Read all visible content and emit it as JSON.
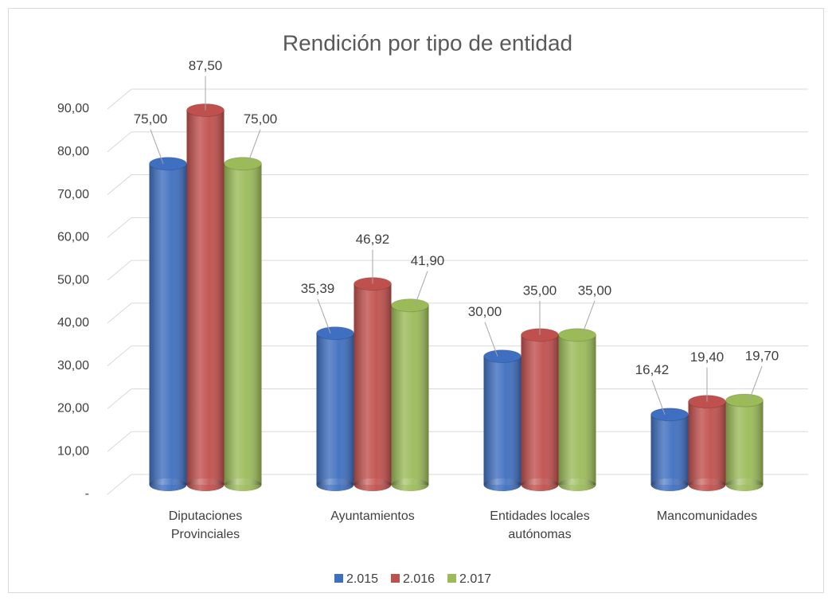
{
  "chart_data": {
    "type": "bar",
    "title": "Rendición por tipo de entidad",
    "categories": [
      "Diputaciones Provinciales",
      "Ayuntamientos",
      "Entidades locales autónomas",
      "Mancomunidades"
    ],
    "series": [
      {
        "name": "2.015",
        "color": "#3f6fc0",
        "values": [
          75,
          35.39,
          30,
          16.42
        ],
        "value_labels": [
          "75,00",
          "35,39",
          "30,00",
          "16,42"
        ]
      },
      {
        "name": "2.016",
        "color": "#c0504d",
        "values": [
          87.5,
          46.92,
          35,
          19.4
        ],
        "value_labels": [
          "87,50",
          "46,92",
          "35,00",
          "19,40"
        ]
      },
      {
        "name": "2.017",
        "color": "#9bbb59",
        "values": [
          75,
          41.9,
          35,
          19.7
        ],
        "value_labels": [
          "75,00",
          "41,90",
          "35,00",
          "19,70"
        ]
      }
    ],
    "ylim": [
      0,
      90
    ],
    "yticks": [
      {
        "value": 0,
        "label": "-"
      },
      {
        "value": 10,
        "label": "10,00"
      },
      {
        "value": 20,
        "label": "20,00"
      },
      {
        "value": 30,
        "label": "30,00"
      },
      {
        "value": 40,
        "label": "40,00"
      },
      {
        "value": 50,
        "label": "50,00"
      },
      {
        "value": 60,
        "label": "60,00"
      },
      {
        "value": 70,
        "label": "70,00"
      },
      {
        "value": 80,
        "label": "80,00"
      },
      {
        "value": 90,
        "label": "90,00"
      }
    ],
    "grid": true,
    "legend": "bottom"
  }
}
